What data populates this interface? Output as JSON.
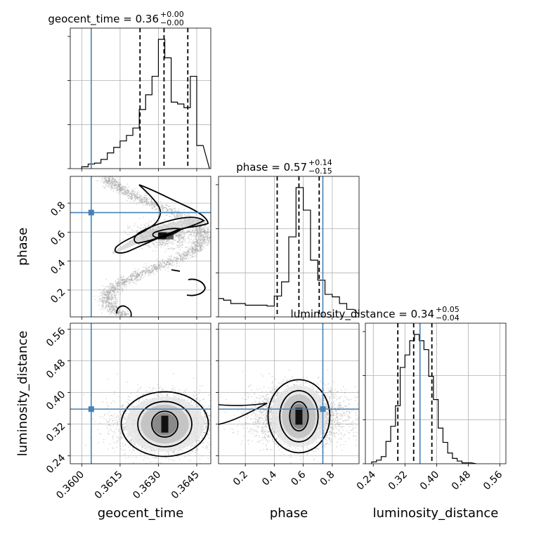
{
  "colors": {
    "truth": "#4682b4",
    "hist": "#000000",
    "grid": "#b0b0b0",
    "sample": "#9a9a9a"
  },
  "chart_data": {
    "type": "corner",
    "parameters": [
      "geocent_time",
      "phase",
      "luminosity_distance"
    ],
    "truths": {
      "geocent_time": 0.36037,
      "phase": 0.735,
      "luminosity_distance": 0.358
    },
    "ranges": {
      "geocent_time": [
        0.35955,
        0.36505
      ],
      "phase": [
        0.015,
        0.985
      ],
      "luminosity_distance": [
        0.22,
        0.575
      ]
    },
    "ticks": {
      "geocent_time": {
        "values": [
          0.36,
          0.3615,
          0.363,
          0.3645
        ],
        "labels": [
          "0.3600",
          "0.3615",
          "0.3630",
          "0.3645"
        ]
      },
      "phase": {
        "values": [
          0.2,
          0.4,
          0.6,
          0.8
        ],
        "labels": [
          "0.2",
          "0.4",
          "0.6",
          "0.8"
        ]
      },
      "luminosity_distance": {
        "values": [
          0.24,
          0.32,
          0.4,
          0.48,
          0.56
        ],
        "labels": [
          "0.24",
          "0.32",
          "0.40",
          "0.48",
          "0.56"
        ]
      }
    },
    "titles": [
      {
        "param": "geocent_time",
        "text": "geocent_time = 0.36",
        "sup": "+0.00",
        "sub": "−0.00"
      },
      {
        "param": "phase",
        "text": "phase = 0.57",
        "sup": "+0.14",
        "sub": "−0.15"
      },
      {
        "param": "luminosity_distance",
        "text": "luminosity_distance = 0.34",
        "sup": "+0.05",
        "sub": "−0.04"
      }
    ],
    "axis_labels": {
      "geocent_time": "geocent_time",
      "phase": "phase",
      "luminosity_distance": "luminosity_distance"
    },
    "quantiles": {
      "geocent_time": [
        0.36228,
        0.36322,
        0.36415
      ],
      "phase": [
        0.42,
        0.57,
        0.71
      ],
      "luminosity_distance": [
        0.302,
        0.342,
        0.388
      ]
    },
    "histograms": {
      "geocent_time": {
        "edges": [
          0.36,
          0.36025,
          0.3605,
          0.36075,
          0.361,
          0.36125,
          0.3615,
          0.36175,
          0.362,
          0.36225,
          0.3625,
          0.36275,
          0.363,
          0.36325,
          0.3635,
          0.36375,
          0.364,
          0.36425,
          0.3645,
          0.36475
        ],
        "counts": [
          2,
          5,
          6,
          10,
          17,
          23,
          30,
          36,
          44,
          64,
          80,
          100,
          140,
          120,
          72,
          70,
          66,
          100,
          25
        ]
      },
      "phase": {
        "edges": [
          0.0,
          0.05,
          0.1,
          0.15,
          0.2,
          0.25,
          0.3,
          0.35,
          0.4,
          0.45,
          0.5,
          0.55,
          0.6,
          0.65,
          0.7,
          0.75,
          0.8,
          0.85,
          0.9,
          0.95
        ],
        "counts": [
          22,
          20,
          16,
          16,
          14,
          14,
          14,
          13,
          25,
          42,
          96,
          155,
          128,
          68,
          44,
          27,
          24,
          16,
          9
        ]
      },
      "luminosity_distance": {
        "edges": [
          0.236,
          0.248,
          0.26,
          0.272,
          0.284,
          0.296,
          0.308,
          0.32,
          0.332,
          0.344,
          0.356,
          0.368,
          0.38,
          0.392,
          0.404,
          0.416,
          0.428,
          0.44,
          0.452,
          0.464,
          0.476,
          0.488
        ],
        "counts": [
          2,
          4,
          8,
          25,
          42,
          65,
          108,
          122,
          138,
          145,
          138,
          128,
          98,
          72,
          40,
          24,
          12,
          6,
          3,
          1,
          1
        ]
      }
    },
    "density_2d": [
      {
        "x": "geocent_time",
        "y": "phase",
        "shape": "zigzag-ridge",
        "peak": [
          0.36315,
          0.57
        ]
      },
      {
        "x": "geocent_time",
        "y": "luminosity_distance",
        "shape": "blob",
        "peak": [
          0.36325,
          0.32
        ]
      },
      {
        "x": "phase",
        "y": "luminosity_distance",
        "shape": "blob",
        "peak": [
          0.57,
          0.34
        ]
      }
    ]
  }
}
